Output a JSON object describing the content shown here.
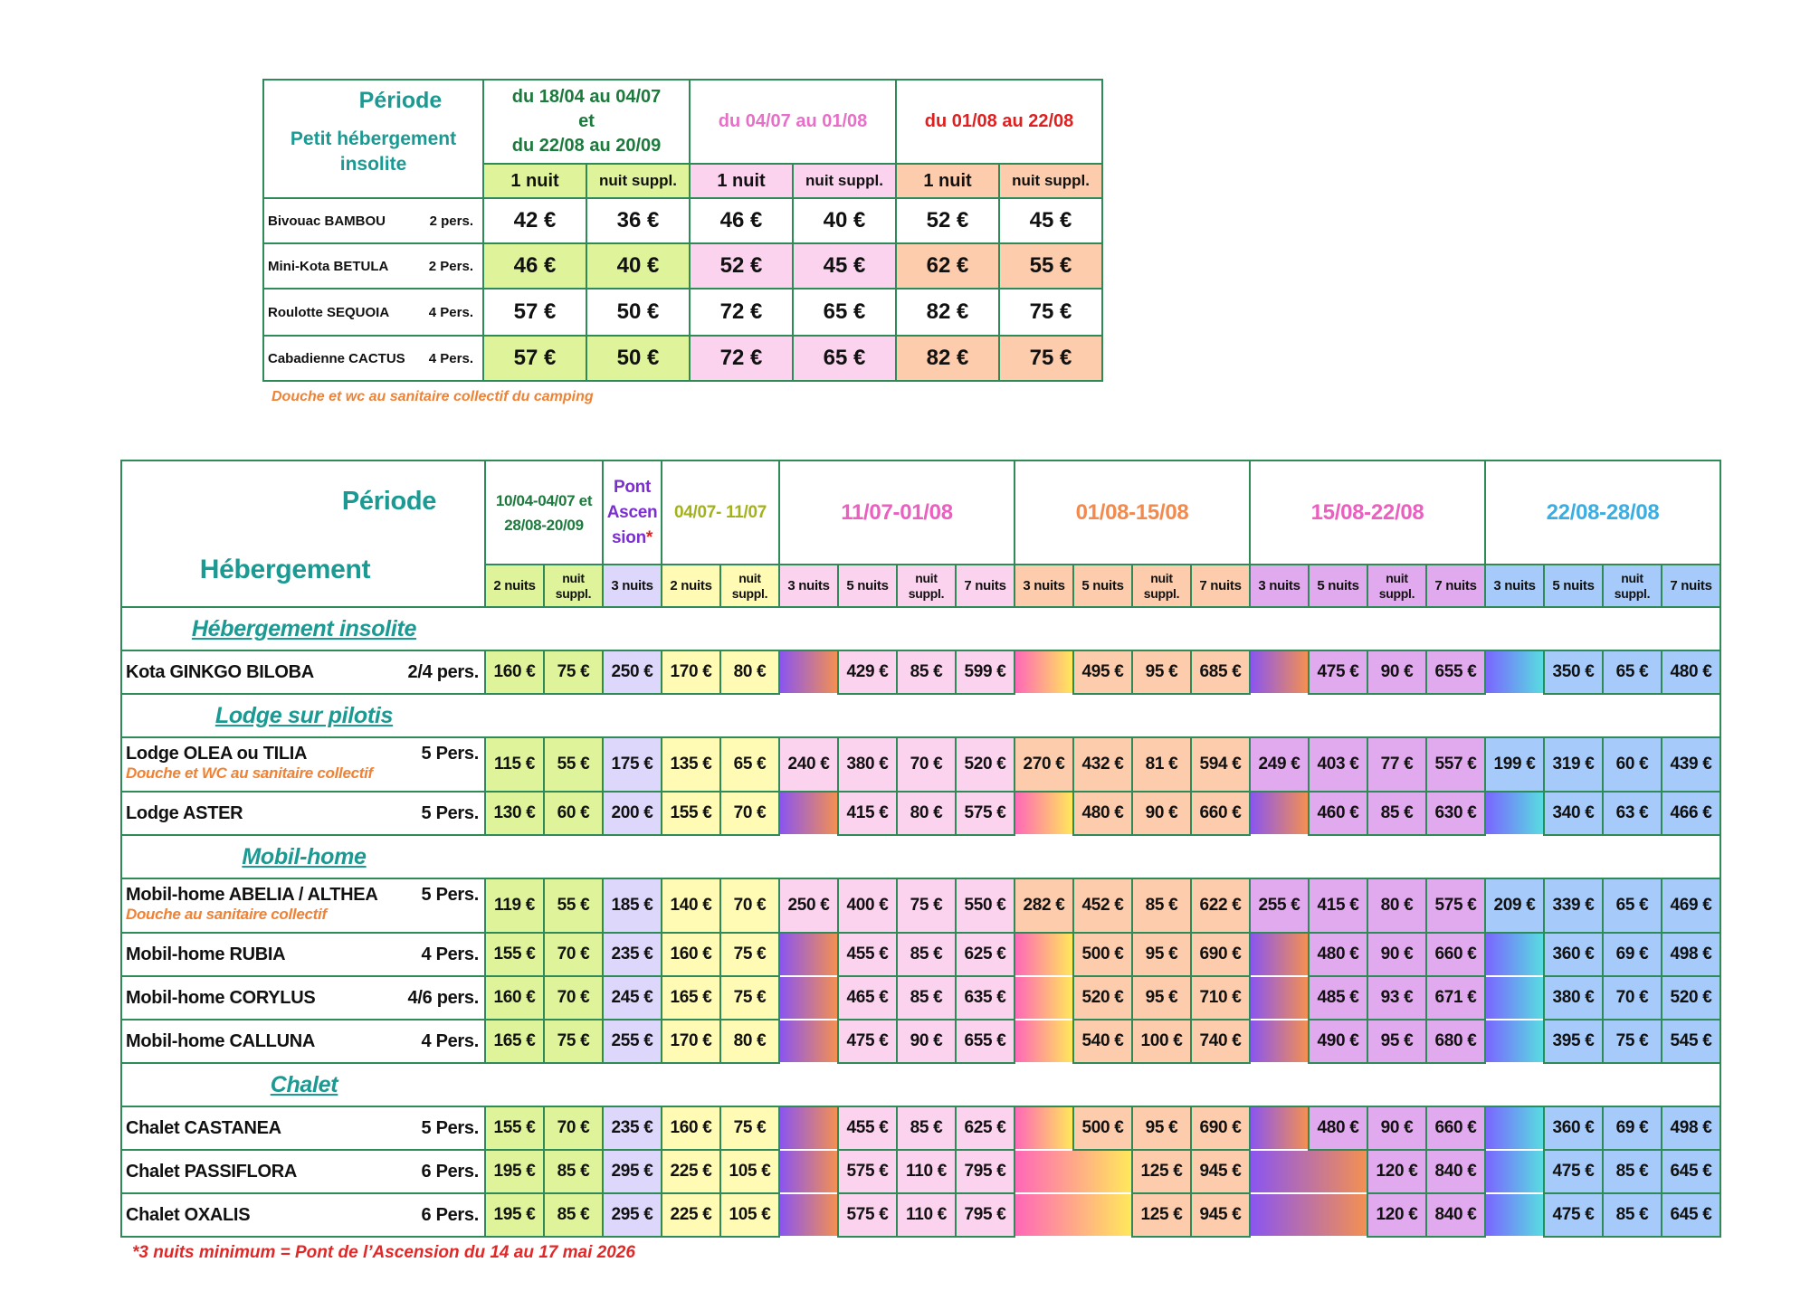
{
  "small_table": {
    "header_period": "Période",
    "header_accommodation": "Petit hébergement insolite",
    "periods": [
      {
        "line1": "du 18/04 au 04/07",
        "line2": "et",
        "line3": "du 22/08 au 20/09",
        "color": "#1c7a3d"
      },
      {
        "line1": "du 04/07 au 01/08",
        "color": "#e76fc8"
      },
      {
        "line1": "du 01/08 au 22/08",
        "color": "#e02020"
      }
    ],
    "col_first": "1 nuit",
    "col_extra": "nuit suppl.",
    "rows": [
      {
        "name": "Bivouac BAMBOU",
        "pers": "2 pers.",
        "prices": [
          "42 €",
          "36 €",
          "46 €",
          "40 €",
          "52 €",
          "45 €"
        ]
      },
      {
        "name": "Mini-Kota BETULA",
        "pers": "2 Pers.",
        "prices": [
          "46 €",
          "40 €",
          "52 €",
          "45 €",
          "62 €",
          "55 €"
        ]
      },
      {
        "name": "Roulotte SEQUOIA",
        "pers": "4 Pers.",
        "prices": [
          "57 €",
          "50 €",
          "72 €",
          "65 €",
          "82 €",
          "75 €"
        ]
      },
      {
        "name": "Cabadienne CACTUS",
        "pers": "4 Pers.",
        "prices": [
          "57 €",
          "50 €",
          "72 €",
          "65 €",
          "82 €",
          "75 €"
        ]
      }
    ],
    "note": "Douche et wc au sanitaire collectif du camping"
  },
  "main_table": {
    "header_period": "Période",
    "header_accommodation": "Hébergement",
    "periods": [
      {
        "label": "10/04-04/07 et 28/08-20/09",
        "color": "#1c7a3d"
      },
      {
        "label": "Pont Ascen sion",
        "star": "*",
        "color": "#7b2fd0"
      },
      {
        "label": "04/07- 11/07",
        "color": "#a3b21c"
      },
      {
        "label": "11/07-01/08",
        "color": "#ea5fbf"
      },
      {
        "label": "01/08-15/08",
        "color": "#f28a4e"
      },
      {
        "label": "15/08-22/08",
        "color": "#ea5fbf"
      },
      {
        "label": "22/08-28/08",
        "color": "#3aaee2"
      }
    ],
    "subheaders": [
      "2 nuits",
      "nuit suppl.",
      "3 nuits",
      "2 nuits",
      "nuit suppl.",
      "3 nuits",
      "5 nuits",
      "nuit suppl.",
      "7 nuits",
      "3 nuits",
      "5 nuits",
      "nuit suppl.",
      "7 nuits",
      "3 nuits",
      "5 nuits",
      "nuit suppl.",
      "7 nuits",
      "3 nuits",
      "5 nuits",
      "nuit suppl.",
      "7 nuits"
    ],
    "sections": [
      {
        "title": "Hébergement insolite",
        "rows": [
          {
            "name": "Kota GINKGO BILOBA",
            "pers": "2/4 pers.",
            "prices": [
              "160 €",
              "75 €",
              "250 €",
              "170 €",
              "80 €",
              null,
              "429 €",
              "85 €",
              "599 €",
              null,
              "495 €",
              "95 €",
              "685 €",
              null,
              "475 €",
              "90 €",
              "655 €",
              null,
              "350 €",
              "65 €",
              "480 €"
            ]
          }
        ]
      },
      {
        "title": "Lodge sur pilotis",
        "rows": [
          {
            "name": "Lodge OLEA ou TILIA",
            "pers": "5 Pers.",
            "note": "Douche et WC au sanitaire collectif",
            "prices": [
              "115 €",
              "55 €",
              "175 €",
              "135 €",
              "65 €",
              "240 €",
              "380 €",
              "70 €",
              "520 €",
              "270 €",
              "432 €",
              "81 €",
              "594 €",
              "249 €",
              "403 €",
              "77 €",
              "557 €",
              "199 €",
              "319 €",
              "60 €",
              "439 €"
            ]
          },
          {
            "name": "Lodge ASTER",
            "pers": "5 Pers.",
            "prices": [
              "130 €",
              "60 €",
              "200 €",
              "155 €",
              "70 €",
              null,
              "415 €",
              "80 €",
              "575 €",
              null,
              "480 €",
              "90 €",
              "660 €",
              null,
              "460 €",
              "85 €",
              "630 €",
              null,
              "340 €",
              "63 €",
              "466 €"
            ]
          }
        ]
      },
      {
        "title": "Mobil-home",
        "rows": [
          {
            "name": "Mobil-home ABELIA / ALTHEA",
            "pers": "5 Pers.",
            "note": "Douche au sanitaire collectif",
            "prices": [
              "119 €",
              "55 €",
              "185 €",
              "140 €",
              "70 €",
              "250 €",
              "400 €",
              "75 €",
              "550 €",
              "282 €",
              "452 €",
              "85 €",
              "622 €",
              "255 €",
              "415 €",
              "80 €",
              "575 €",
              "209 €",
              "339 €",
              "65 €",
              "469 €"
            ]
          },
          {
            "name": "Mobil-home RUBIA",
            "pers": "4 Pers.",
            "prices": [
              "155 €",
              "70 €",
              "235 €",
              "160 €",
              "75 €",
              null,
              "455 €",
              "85 €",
              "625 €",
              null,
              "500 €",
              "95 €",
              "690 €",
              null,
              "480 €",
              "90 €",
              "660 €",
              null,
              "360 €",
              "69 €",
              "498 €"
            ]
          },
          {
            "name": "Mobil-home CORYLUS",
            "pers": "4/6 pers.",
            "prices": [
              "160 €",
              "70 €",
              "245 €",
              "165 €",
              "75 €",
              null,
              "465 €",
              "85 €",
              "635 €",
              null,
              "520 €",
              "95 €",
              "710 €",
              null,
              "485 €",
              "93 €",
              "671 €",
              null,
              "380 €",
              "70 €",
              "520 €"
            ]
          },
          {
            "name": "Mobil-home CALLUNA",
            "pers": "4 Pers.",
            "prices": [
              "165 €",
              "75 €",
              "255 €",
              "170 €",
              "80 €",
              null,
              "475 €",
              "90 €",
              "655 €",
              null,
              "540 €",
              "100 €",
              "740 €",
              null,
              "490 €",
              "95 €",
              "680 €",
              null,
              "395 €",
              "75 €",
              "545 €"
            ]
          }
        ]
      },
      {
        "title": "Chalet",
        "rows": [
          {
            "name": "Chalet CASTANEA",
            "pers": "5 Pers.",
            "prices": [
              "155 €",
              "70 €",
              "235 €",
              "160 €",
              "75 €",
              null,
              "455 €",
              "85 €",
              "625 €",
              null,
              "500 €",
              "95 €",
              "690 €",
              null,
              "480 €",
              "90 €",
              "660 €",
              null,
              "360 €",
              "69 €",
              "498 €"
            ]
          },
          {
            "name": "Chalet PASSIFLORA",
            "pers": "6 Pers.",
            "prices": [
              "195 €",
              "85 €",
              "295 €",
              "225 €",
              "105 €",
              null,
              "575 €",
              "110 €",
              "795 €",
              null,
              null,
              "125 €",
              "945 €",
              null,
              null,
              "120 €",
              "840 €",
              null,
              "475 €",
              "85 €",
              "645 €"
            ]
          },
          {
            "name": "Chalet OXALIS",
            "pers": "6 Pers.",
            "prices": [
              "195 €",
              "85 €",
              "295 €",
              "225 €",
              "105 €",
              null,
              "575 €",
              "110 €",
              "795 €",
              null,
              null,
              "125 €",
              "945 €",
              null,
              null,
              "120 €",
              "840 €",
              null,
              "475 €",
              "85 €",
              "645 €"
            ]
          }
        ]
      }
    ],
    "footnote": "*3 nuits minimum = Pont de l’Ascension du 14 au 17 mai 2026"
  }
}
